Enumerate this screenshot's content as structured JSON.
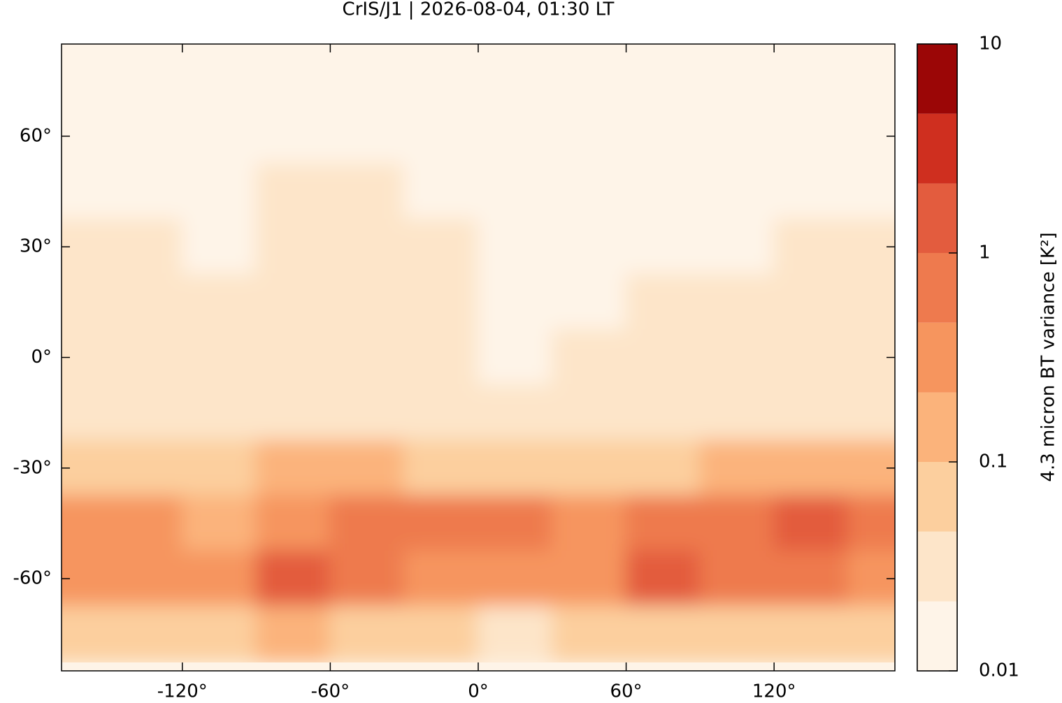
{
  "chart_data": {
    "type": "heatmap",
    "title": "CrIS/J1 | 2026-08-04, 01:30 LT",
    "x": [
      -165,
      -135,
      -105,
      -75,
      -45,
      -15,
      15,
      45,
      75,
      105,
      135,
      165
    ],
    "y": [
      75,
      60,
      45,
      30,
      15,
      0,
      -15,
      -30,
      -45,
      -60,
      -75
    ],
    "values": [
      [
        0.015,
        0.015,
        0.015,
        0.015,
        0.015,
        0.015,
        0.015,
        0.015,
        0.015,
        0.015,
        0.015,
        0.015
      ],
      [
        0.015,
        0.015,
        0.015,
        0.02,
        0.02,
        0.015,
        0.015,
        0.015,
        0.015,
        0.015,
        0.015,
        0.015
      ],
      [
        0.02,
        0.02,
        0.02,
        0.025,
        0.025,
        0.02,
        0.015,
        0.015,
        0.015,
        0.015,
        0.02,
        0.02
      ],
      [
        0.025,
        0.025,
        0.02,
        0.03,
        0.03,
        0.025,
        0.015,
        0.015,
        0.02,
        0.02,
        0.025,
        0.03
      ],
      [
        0.03,
        0.03,
        0.025,
        0.03,
        0.03,
        0.025,
        0.015,
        0.02,
        0.025,
        0.03,
        0.03,
        0.035
      ],
      [
        0.03,
        0.03,
        0.03,
        0.03,
        0.03,
        0.03,
        0.02,
        0.025,
        0.03,
        0.03,
        0.035,
        0.03
      ],
      [
        0.035,
        0.035,
        0.035,
        0.03,
        0.04,
        0.035,
        0.025,
        0.03,
        0.03,
        0.035,
        0.04,
        0.035
      ],
      [
        0.08,
        0.07,
        0.06,
        0.15,
        0.2,
        0.08,
        0.05,
        0.06,
        0.08,
        0.1,
        0.15,
        0.1
      ],
      [
        0.3,
        0.25,
        0.2,
        0.4,
        0.8,
        0.6,
        0.5,
        0.35,
        0.6,
        0.8,
        1.0,
        0.5
      ],
      [
        0.3,
        0.3,
        0.35,
        1.2,
        0.5,
        0.35,
        0.3,
        0.4,
        1.0,
        0.6,
        0.5,
        0.3
      ],
      [
        0.08,
        0.07,
        0.06,
        0.15,
        0.08,
        0.05,
        0.04,
        0.06,
        0.06,
        0.05,
        0.05,
        0.06
      ]
    ],
    "xlim": [
      -169,
      169
    ],
    "ylim": [
      -85,
      85
    ],
    "xticks": [
      {
        "value": -120,
        "label": "-120°"
      },
      {
        "value": -60,
        "label": "-60°"
      },
      {
        "value": 0,
        "label": "0°"
      },
      {
        "value": 60,
        "label": "60°"
      },
      {
        "value": 120,
        "label": "120°"
      }
    ],
    "yticks": [
      {
        "value": -60,
        "label": "-60°"
      },
      {
        "value": -30,
        "label": "-30°"
      },
      {
        "value": 0,
        "label": "0°"
      },
      {
        "value": 30,
        "label": "30°"
      },
      {
        "value": 60,
        "label": "60°"
      }
    ],
    "colorbar": {
      "label": "4.3 micron BT variance [K²]",
      "log": true,
      "levels": [
        0.01,
        0.0215,
        0.0464,
        0.1,
        0.215,
        0.464,
        1,
        2.15,
        4.64,
        10
      ],
      "colors": [
        "#fef4e8",
        "#fde5c9",
        "#fccf9e",
        "#fbb37b",
        "#f6955e",
        "#ee7a4e",
        "#e35c3e",
        "#cf2f1f",
        "#9b0606"
      ],
      "ticks": [
        0.01,
        0.1,
        1,
        10
      ]
    }
  }
}
